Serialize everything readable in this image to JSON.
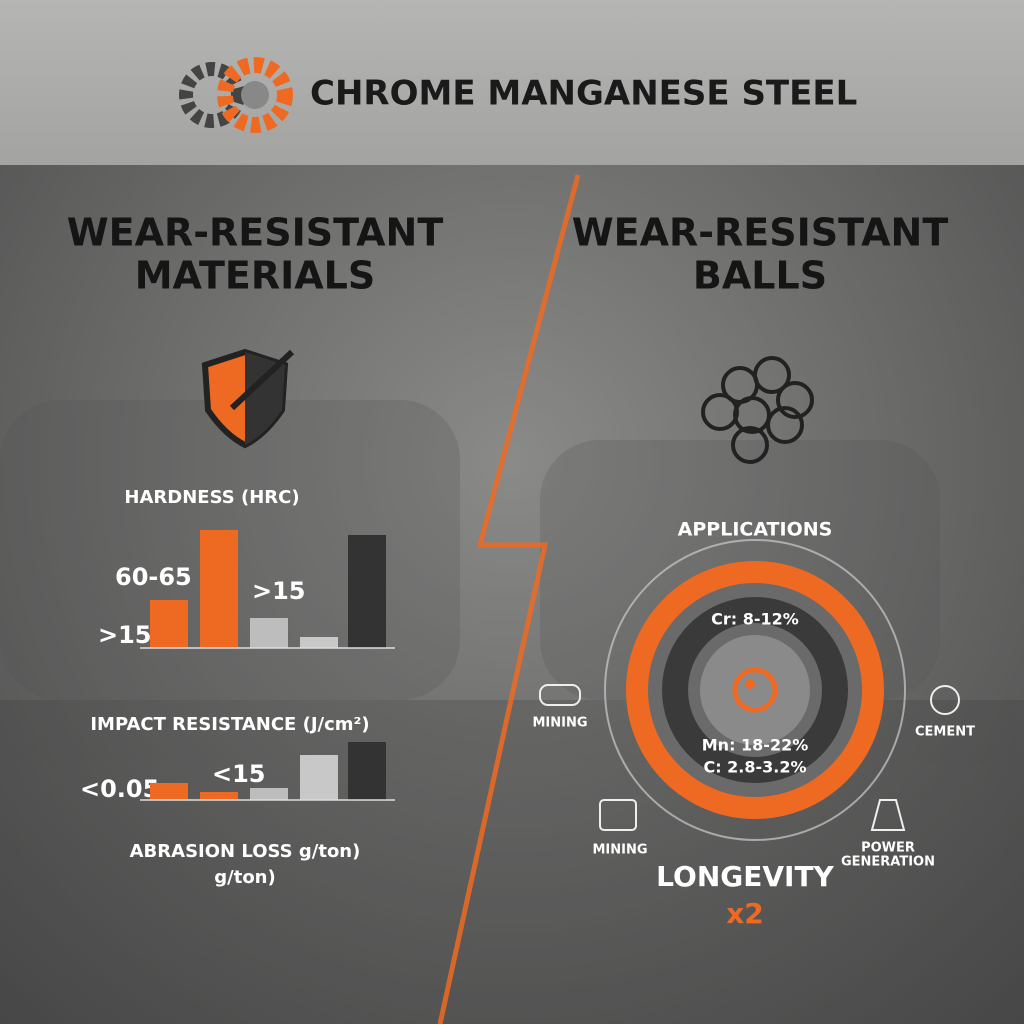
{
  "header": {
    "title": "CHROME MANGANESE STEEL"
  },
  "left": {
    "heading": [
      "WEAR-RESISTANT",
      "MATERIALS"
    ],
    "hardness": {
      "title": "HARDNESS (HRC)",
      "labels": [
        "60-65",
        ">15",
        ">15"
      ]
    },
    "impact": {
      "title": "IMPACT RESISTANCE (J/cm²)",
      "labels": [
        "<0.05",
        "<15"
      ]
    },
    "abrasion": {
      "title": [
        "ABRASION LOSS g/ton)",
        "g/ton)"
      ]
    }
  },
  "right": {
    "heading": [
      "WEAR-RESISTANT",
      "BALLS"
    ],
    "applications": "APPLICATIONS",
    "composition": [
      "Cr: 8-12%",
      "Mn: 18-22%",
      "C: 2.8-3.2%"
    ],
    "apps": [
      "MINING",
      "CEMENT",
      "MINING",
      "POWER",
      "GENERATION"
    ],
    "longevity": [
      "LONGEVITY",
      "x2"
    ]
  }
}
